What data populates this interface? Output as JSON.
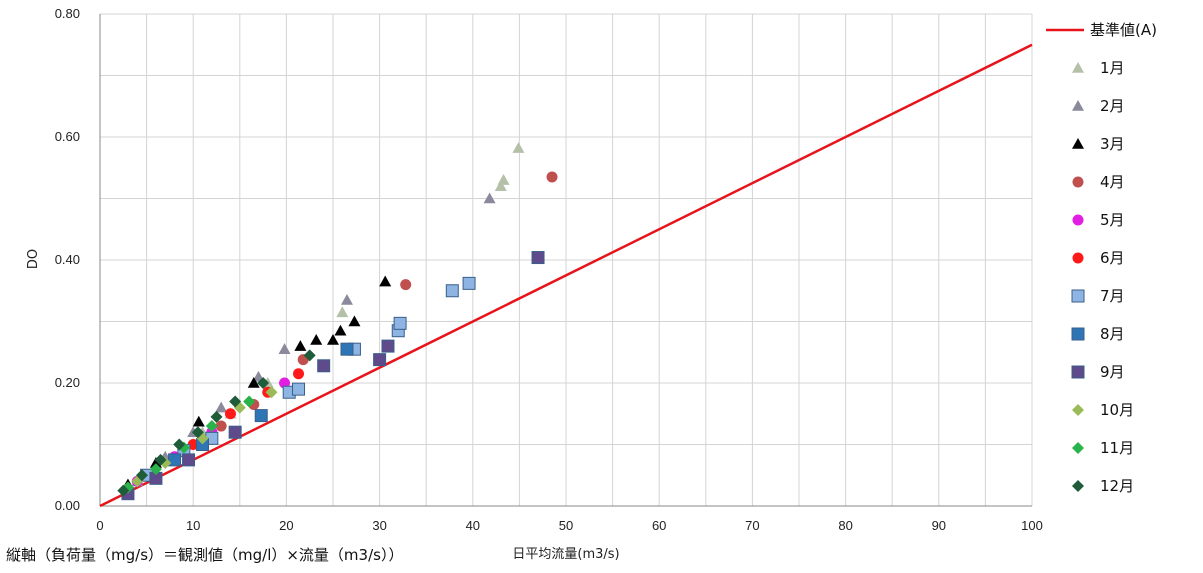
{
  "chart_data": {
    "type": "scatter",
    "title": "",
    "xlabel": "日平均流量(m3/s)",
    "ylabel": "DO",
    "xlim": [
      0,
      100
    ],
    "ylim": [
      0,
      0.8
    ],
    "xticks": [
      "0",
      "10",
      "20",
      "30",
      "40",
      "50",
      "60",
      "70",
      "80",
      "90",
      "100"
    ],
    "yticks": [
      "0.00",
      "0.20",
      "0.40",
      "0.60",
      "0.80"
    ],
    "grid": true,
    "legend_position": "right",
    "reference_line": {
      "name": "基準値(A)",
      "color": "#e8141b",
      "x": [
        0,
        100
      ],
      "y": [
        0,
        0.75
      ]
    },
    "series": [
      {
        "name": "1月",
        "marker": "triangle",
        "color": "#b5c0a9",
        "points": [
          [
            3,
            0.03
          ],
          [
            5,
            0.05
          ],
          [
            8,
            0.08
          ],
          [
            11,
            0.12
          ],
          [
            14,
            0.15
          ],
          [
            18,
            0.2
          ],
          [
            26,
            0.315
          ],
          [
            43,
            0.52
          ],
          [
            43.3,
            0.53
          ],
          [
            44.9,
            0.582
          ]
        ]
      },
      {
        "name": "2月",
        "marker": "triangle",
        "color": "#8a8a9c",
        "points": [
          [
            4,
            0.04
          ],
          [
            7,
            0.08
          ],
          [
            10,
            0.12
          ],
          [
            13,
            0.16
          ],
          [
            17,
            0.21
          ],
          [
            19.8,
            0.255
          ],
          [
            26.5,
            0.335
          ],
          [
            41.8,
            0.5
          ]
        ]
      },
      {
        "name": "3月",
        "marker": "triangle",
        "color": "#000000",
        "points": [
          [
            3,
            0.035
          ],
          [
            6,
            0.07
          ],
          [
            10.6,
            0.137
          ],
          [
            16.5,
            0.2
          ],
          [
            21.5,
            0.26
          ],
          [
            23.2,
            0.27
          ],
          [
            25,
            0.27
          ],
          [
            25.8,
            0.285
          ],
          [
            27.3,
            0.3
          ],
          [
            30.6,
            0.365
          ]
        ]
      },
      {
        "name": "4月",
        "marker": "circle",
        "color": "#c0504d",
        "points": [
          [
            5,
            0.05
          ],
          [
            9,
            0.09
          ],
          [
            13,
            0.13
          ],
          [
            16.5,
            0.165
          ],
          [
            21.8,
            0.238
          ],
          [
            32.8,
            0.36
          ],
          [
            48.5,
            0.535
          ]
        ]
      },
      {
        "name": "5月",
        "marker": "circle",
        "color": "#e21ee2",
        "points": [
          [
            4,
            0.04
          ],
          [
            8,
            0.08
          ],
          [
            12,
            0.12
          ],
          [
            19.8,
            0.2
          ]
        ]
      },
      {
        "name": "6月",
        "marker": "circle",
        "color": "#ff1a1a",
        "points": [
          [
            5,
            0.05
          ],
          [
            10,
            0.1
          ],
          [
            14,
            0.15
          ],
          [
            18,
            0.185
          ],
          [
            21.3,
            0.215
          ]
        ]
      },
      {
        "name": "7月",
        "marker": "square",
        "color": "#8db4e2",
        "points": [
          [
            5,
            0.05
          ],
          [
            9,
            0.09
          ],
          [
            12,
            0.11
          ],
          [
            20.3,
            0.185
          ],
          [
            21.3,
            0.19
          ],
          [
            27.3,
            0.255
          ],
          [
            32,
            0.285
          ],
          [
            32.2,
            0.297
          ],
          [
            37.8,
            0.35
          ],
          [
            39.6,
            0.362
          ]
        ]
      },
      {
        "name": "8月",
        "marker": "square",
        "color": "#2e75b6",
        "points": [
          [
            8,
            0.075
          ],
          [
            11,
            0.1
          ],
          [
            17.3,
            0.147
          ],
          [
            26.5,
            0.255
          ]
        ]
      },
      {
        "name": "9月",
        "marker": "square",
        "color": "#5f4b8b",
        "points": [
          [
            3,
            0.02
          ],
          [
            6,
            0.045
          ],
          [
            9.5,
            0.075
          ],
          [
            14.5,
            0.12
          ],
          [
            24,
            0.228
          ],
          [
            30,
            0.238
          ],
          [
            30.9,
            0.26
          ],
          [
            47,
            0.404
          ]
        ]
      },
      {
        "name": "10月",
        "marker": "diamond",
        "color": "#9bbb59",
        "points": [
          [
            4,
            0.04
          ],
          [
            7,
            0.07
          ],
          [
            11,
            0.11
          ],
          [
            15,
            0.16
          ],
          [
            18.4,
            0.185
          ]
        ]
      },
      {
        "name": "11月",
        "marker": "diamond",
        "color": "#2ab34a",
        "points": [
          [
            3,
            0.03
          ],
          [
            6,
            0.06
          ],
          [
            9,
            0.095
          ],
          [
            12,
            0.13
          ],
          [
            16,
            0.17
          ]
        ]
      },
      {
        "name": "12月",
        "marker": "diamond",
        "color": "#1f5c3a",
        "points": [
          [
            2.5,
            0.025
          ],
          [
            4.5,
            0.05
          ],
          [
            6.5,
            0.075
          ],
          [
            8.5,
            0.1
          ],
          [
            10.5,
            0.12
          ],
          [
            12.5,
            0.145
          ],
          [
            14.5,
            0.17
          ],
          [
            17.5,
            0.2
          ],
          [
            22.5,
            0.245
          ]
        ]
      }
    ]
  },
  "footnote": "縦軸（負荷量（mg/s）＝観測値（mg/l）×流量（m3/s））"
}
